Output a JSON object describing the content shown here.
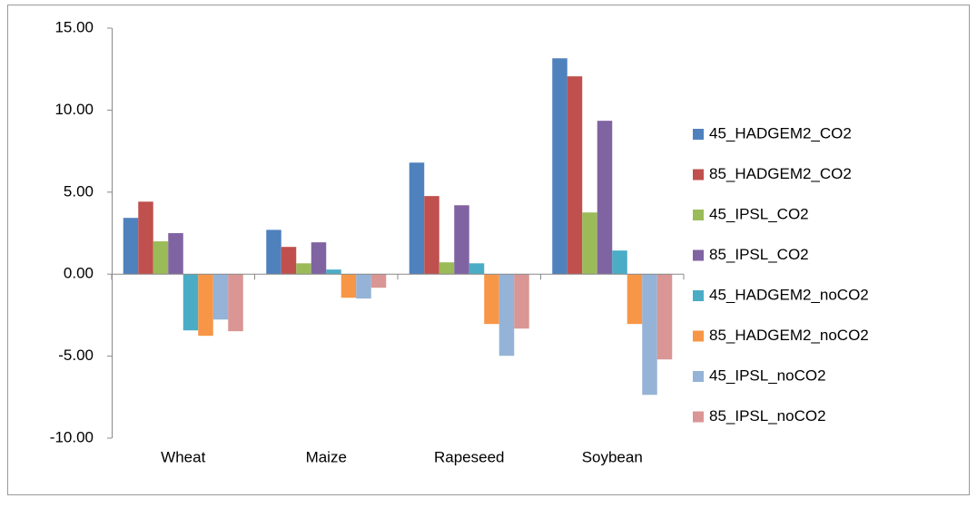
{
  "chart_data": {
    "type": "bar",
    "categories": [
      "Wheat",
      "Maize",
      "Rapeseed",
      "Soybean"
    ],
    "series": [
      {
        "name": "45_HADGEM2_CO2",
        "color": "#4f81bd",
        "values": [
          3.43,
          2.7,
          6.8,
          13.16
        ]
      },
      {
        "name": "85_HADGEM2_CO2",
        "color": "#c0504d",
        "values": [
          4.42,
          1.66,
          4.76,
          12.06
        ]
      },
      {
        "name": "45_IPSL_CO2",
        "color": "#9bbb59",
        "values": [
          2.0,
          0.66,
          0.72,
          3.76
        ]
      },
      {
        "name": "85_IPSL_CO2",
        "color": "#8064a2",
        "values": [
          2.5,
          1.94,
          4.2,
          9.35
        ]
      },
      {
        "name": "45_HADGEM2_noCO2",
        "color": "#4bacc6",
        "values": [
          -3.43,
          0.28,
          0.66,
          1.44
        ]
      },
      {
        "name": "85_HADGEM2_noCO2",
        "color": "#f79646",
        "values": [
          -3.76,
          -1.44,
          -3.04,
          -3.04
        ]
      },
      {
        "name": "45_IPSL_noCO2",
        "color": "#95b3d7",
        "values": [
          -2.77,
          -1.49,
          -4.98,
          -7.36
        ]
      },
      {
        "name": "85_IPSL_noCO2",
        "color": "#d99694",
        "values": [
          -3.48,
          -0.83,
          -3.32,
          -5.2
        ]
      }
    ],
    "ylim": [
      -10,
      15
    ],
    "yticks": [
      {
        "value": -10,
        "label": "-10.00"
      },
      {
        "value": -5,
        "label": "-5.00"
      },
      {
        "value": 0,
        "label": "0.00"
      },
      {
        "value": 5,
        "label": "5.00"
      },
      {
        "value": 10,
        "label": "10.00"
      },
      {
        "value": 15,
        "label": "15.00"
      }
    ],
    "grid": false,
    "legend": "right"
  }
}
